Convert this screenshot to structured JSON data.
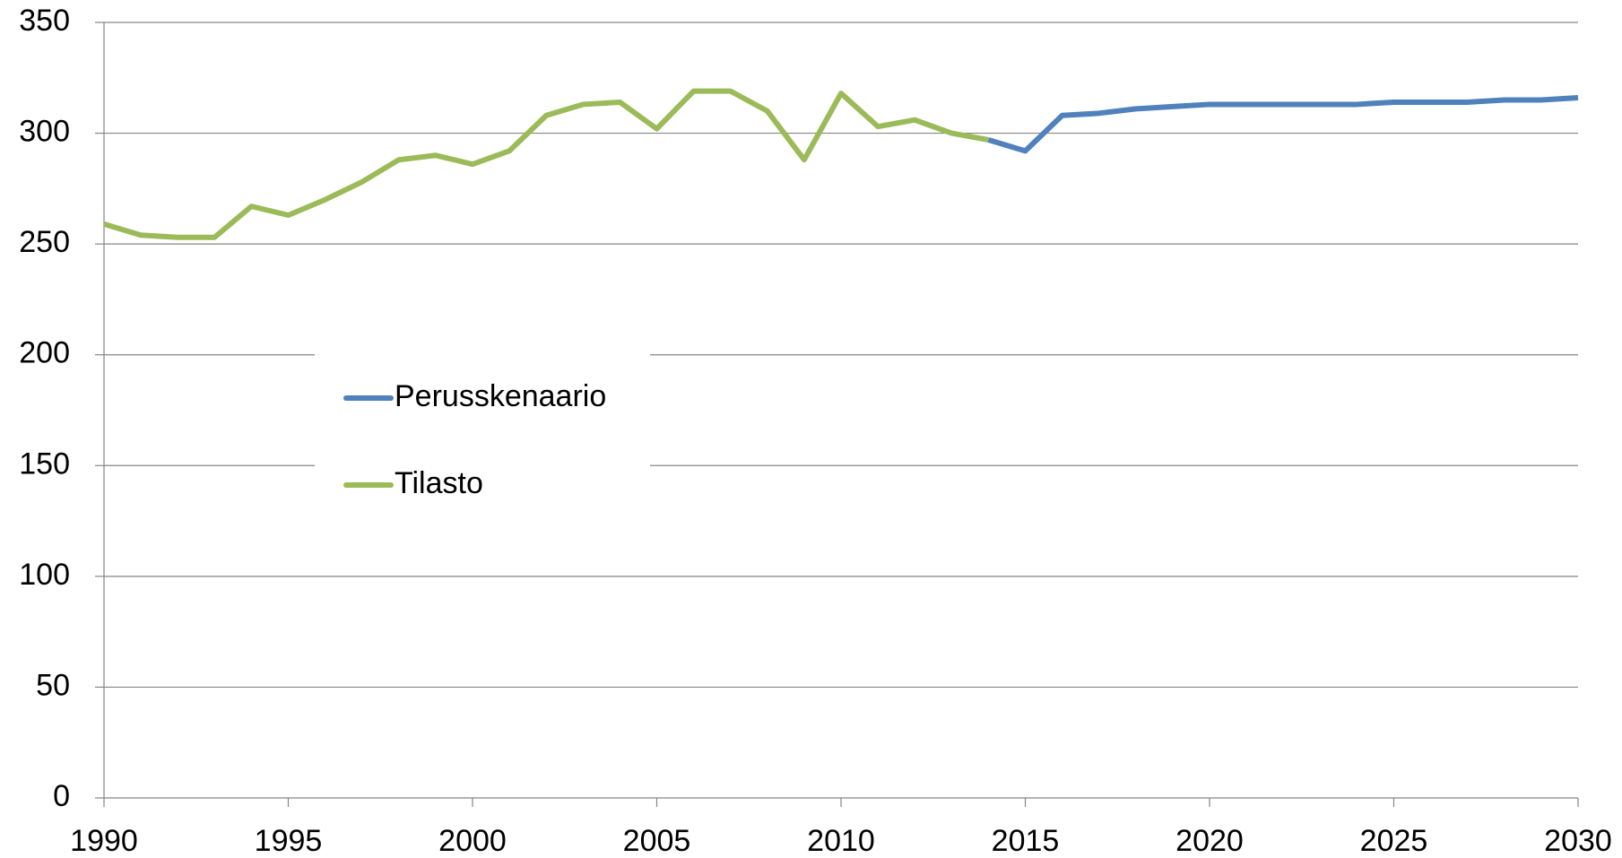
{
  "chart_data": {
    "type": "line",
    "x": [
      1990,
      1991,
      1992,
      1993,
      1994,
      1995,
      1996,
      1997,
      1998,
      1999,
      2000,
      2001,
      2002,
      2003,
      2004,
      2005,
      2006,
      2007,
      2008,
      2009,
      2010,
      2011,
      2012,
      2013,
      2014,
      2015,
      2016,
      2017,
      2018,
      2019,
      2020,
      2021,
      2022,
      2023,
      2024,
      2025,
      2026,
      2027,
      2028,
      2029,
      2030
    ],
    "series": [
      {
        "name": "Perusskenaario",
        "color": "#4f81bd",
        "values": [
          null,
          null,
          null,
          null,
          null,
          null,
          null,
          null,
          null,
          null,
          null,
          null,
          null,
          null,
          null,
          null,
          null,
          null,
          null,
          null,
          null,
          null,
          null,
          null,
          297,
          292,
          308,
          309,
          311,
          312,
          313,
          313,
          313,
          313,
          313,
          314,
          314,
          314,
          315,
          315,
          316
        ]
      },
      {
        "name": "Tilasto",
        "color": "#9bbb59",
        "values": [
          259,
          254,
          253,
          253,
          267,
          263,
          270,
          278,
          288,
          290,
          286,
          292,
          308,
          313,
          314,
          302,
          319,
          319,
          310,
          288,
          318,
          303,
          306,
          300,
          297,
          null,
          null,
          null,
          null,
          null,
          null,
          null,
          null,
          null,
          null,
          null,
          null,
          null,
          null,
          null,
          null
        ]
      }
    ],
    "xlim": [
      1990,
      2030
    ],
    "xticks": [
      1990,
      1995,
      2000,
      2005,
      2010,
      2015,
      2020,
      2025,
      2030
    ],
    "ylim": [
      0,
      350
    ],
    "yticks": [
      0,
      50,
      100,
      150,
      200,
      250,
      300,
      350
    ],
    "grid": true
  }
}
